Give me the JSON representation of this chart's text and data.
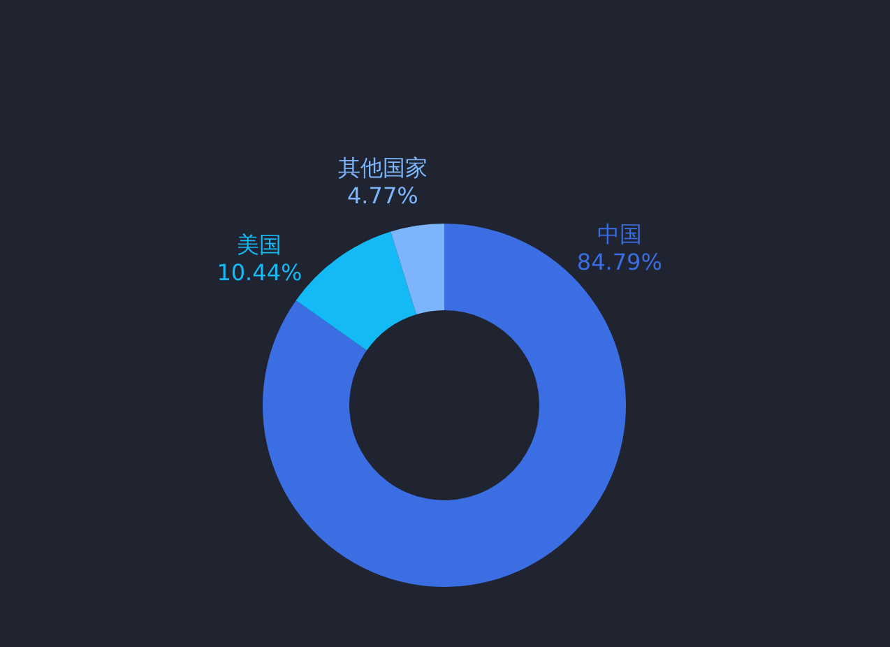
{
  "chart_data": {
    "type": "donut",
    "categories": [
      "中国",
      "美国",
      "其他国家"
    ],
    "values": [
      84.79,
      10.44,
      4.77
    ],
    "value_labels": [
      "84.79%",
      "10.44%",
      "4.77%"
    ],
    "colors": [
      "#3b6de3",
      "#14baf5",
      "#7cb5fb"
    ]
  }
}
